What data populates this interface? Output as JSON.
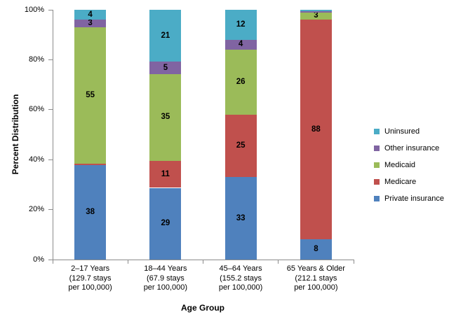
{
  "chart_data": {
    "type": "bar",
    "stacked": true,
    "percent_stacked": true,
    "title": "",
    "xlabel": "Age Group",
    "ylabel": "Percent Distribution",
    "ylim": [
      0,
      100
    ],
    "ytick_labels": [
      "0%",
      "20%",
      "40%",
      "60%",
      "80%",
      "100%"
    ],
    "grid": false,
    "categories": [
      [
        "2–17 Years",
        "(129.7 stays",
        "per 100,000)"
      ],
      [
        "18–44 Years",
        "(67.9 stays",
        "per 100,000)"
      ],
      [
        "45–64 Years",
        "(155.2 stays",
        "per 100,000)"
      ],
      [
        "65 Years & Older",
        "(212.1 stays",
        "per 100,000)"
      ]
    ],
    "series": [
      {
        "name": "Private insurance",
        "color": "#4F81BD",
        "values": [
          38,
          29,
          33,
          8
        ]
      },
      {
        "name": "Medicare",
        "color": "#C0504D",
        "values": [
          0.5,
          11,
          25,
          88
        ]
      },
      {
        "name": "Medicaid",
        "color": "#9BBB59",
        "values": [
          55,
          35,
          26,
          3
        ]
      },
      {
        "name": "Other insurance",
        "color": "#8064A2",
        "values": [
          3,
          5,
          4,
          0.5
        ]
      },
      {
        "name": "Uninsured",
        "color": "#4BACC6",
        "values": [
          4,
          21,
          12,
          0.5
        ]
      }
    ],
    "label_min_value_for_display": 2,
    "legend": {
      "position": "right",
      "entries": [
        {
          "label": "Uninsured",
          "color": "#4BACC6"
        },
        {
          "label": "Other insurance",
          "color": "#8064A2"
        },
        {
          "label": "Medicaid",
          "color": "#9BBB59"
        },
        {
          "label": "Medicare",
          "color": "#C0504D"
        },
        {
          "label": "Private insurance",
          "color": "#4F81BD"
        }
      ]
    }
  }
}
